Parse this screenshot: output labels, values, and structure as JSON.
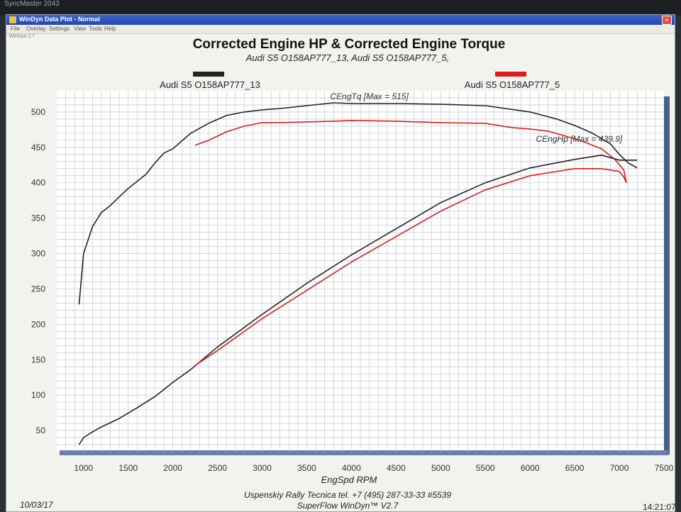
{
  "window": {
    "title": "WinDyn Data Plot - Normal",
    "menu": [
      "File",
      "Overlay",
      "Settings",
      "View",
      "Tools",
      "Help"
    ],
    "close_glyph": "×",
    "status_text": "WinDyn 2.7"
  },
  "chart_data": {
    "type": "line",
    "title": "Corrected Engine HP & Corrected Engine Torque",
    "subtitle": "Audi S5 O158AP777_13, Audi S5 O158AP777_5,",
    "xlabel": "EngSpd  RPM",
    "ylabel": "",
    "xlim": [
      700,
      7500
    ],
    "ylim": [
      20,
      530
    ],
    "xticks": [
      1000,
      1500,
      2000,
      2500,
      3000,
      3500,
      4000,
      4500,
      5000,
      5500,
      6000,
      6500,
      7000,
      7500
    ],
    "yticks": [
      50,
      100,
      150,
      200,
      250,
      300,
      350,
      400,
      450,
      500
    ],
    "grid": true,
    "legend": [
      {
        "name": "Audi S5 O158AP777_13",
        "color": "#222222"
      },
      {
        "name": "Audi S5 O158AP777_5",
        "color": "#e01b1b"
      }
    ],
    "annotations": [
      {
        "text": "CEngTq [Max = 515]",
        "x": 4200,
        "y": 518
      },
      {
        "text": "CEngHp [Max = 439.9]",
        "x": 6550,
        "y": 458
      }
    ],
    "series": [
      {
        "name": "Audi S5 O158AP777_13 CEngTq",
        "color": "#222222",
        "x": [
          950,
          1000,
          1100,
          1200,
          1300,
          1400,
          1500,
          1600,
          1700,
          1800,
          1900,
          2000,
          2200,
          2400,
          2600,
          2800,
          3000,
          3200,
          3500,
          3800,
          4000,
          4200,
          4500,
          5000,
          5500,
          6000,
          6300,
          6500,
          6700,
          6900,
          7000,
          7100,
          7200
        ],
        "y": [
          228,
          300,
          338,
          358,
          368,
          380,
          392,
          402,
          412,
          428,
          442,
          448,
          470,
          484,
          495,
          500,
          503,
          505,
          509,
          513,
          512,
          512,
          512,
          511,
          509,
          500,
          490,
          481,
          470,
          455,
          440,
          428,
          421
        ]
      },
      {
        "name": "Audi S5 O158AP777_5 CEngTq",
        "color": "#e01b1b",
        "x": [
          2250,
          2400,
          2600,
          2800,
          3000,
          3200,
          3500,
          3800,
          4000,
          4500,
          5000,
          5500,
          5800,
          6000,
          6200,
          6400,
          6600,
          6800,
          6950,
          7050,
          7080
        ],
        "y": [
          453,
          460,
          472,
          480,
          485,
          485,
          486,
          487,
          488,
          487,
          485,
          484,
          478,
          476,
          473,
          466,
          458,
          448,
          433,
          418,
          400
        ]
      },
      {
        "name": "Audi S5 O158AP777_13 CEngHp",
        "color": "#222222",
        "x": [
          950,
          1000,
          1100,
          1200,
          1400,
          1600,
          1800,
          2000,
          2200,
          2500,
          3000,
          3500,
          4000,
          4500,
          5000,
          5500,
          6000,
          6500,
          6800,
          7000,
          7200
        ],
        "y": [
          30,
          40,
          48,
          55,
          67,
          82,
          98,
          118,
          136,
          168,
          214,
          258,
          298,
          335,
          372,
          400,
          421,
          433,
          439,
          432,
          432
        ]
      },
      {
        "name": "Audi S5 O158AP777_5 CEngHp",
        "color": "#e01b1b",
        "x": [
          2250,
          2500,
          3000,
          3500,
          4000,
          4500,
          5000,
          5500,
          6000,
          6500,
          6800,
          7000,
          7050,
          7080
        ],
        "y": [
          142,
          163,
          208,
          248,
          288,
          324,
          360,
          390,
          410,
          420,
          420,
          416,
          408,
          400
        ]
      }
    ]
  },
  "footer": {
    "date": "10/03/17",
    "company": "Uspenskiy Rally Tecnica    tel. +7 (495) 287-33-33 #5539",
    "software": "SuperFlow WinDyn™ V2.7",
    "time": "14:21:07"
  }
}
